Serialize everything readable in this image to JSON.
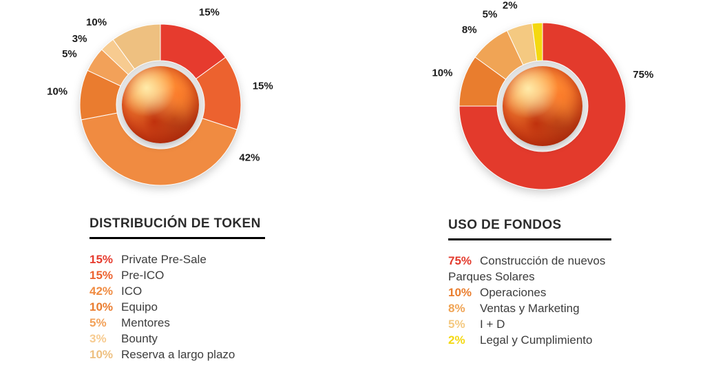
{
  "chart_data": [
    {
      "type": "pie",
      "donut": true,
      "direction": "clockwise",
      "start_angle_deg": 0,
      "title": "DISTRIBUCIÓN DE TOKEN",
      "segments": [
        {
          "label": "Private Pre-Sale",
          "value": 15,
          "pct_label": "15%",
          "color": "#e63b2e",
          "label_angle": 28
        },
        {
          "label": "Pre-ICO",
          "value": 15,
          "pct_label": "15%",
          "color": "#ec622f",
          "label_angle": 80
        },
        {
          "label": "ICO",
          "value": 42,
          "pct_label": "42%",
          "color": "#f08b41",
          "label_angle": 121
        },
        {
          "label": "Equipo",
          "value": 10,
          "pct_label": "10%",
          "color": "#ea7c2f",
          "label_angle": 277
        },
        {
          "label": "Mentores",
          "value": 5,
          "pct_label": "5%",
          "color": "#f2a159",
          "label_angle": 299
        },
        {
          "label": "Bounty",
          "value": 3,
          "pct_label": "3%",
          "color": "#f7cb90",
          "label_angle": 309
        },
        {
          "label": "Reserva a largo plazo",
          "value": 10,
          "pct_label": "10%",
          "color": "#eec080",
          "label_angle": 322
        }
      ]
    },
    {
      "type": "pie",
      "donut": true,
      "direction": "clockwise",
      "start_angle_deg": 0,
      "title": "USO DE FONDOS",
      "segments": [
        {
          "label": "Construcción de nuevos Parques Solares",
          "value": 75,
          "pct_label": "75%",
          "color": "#e33a2c",
          "label_angle": 73
        },
        {
          "label": "Operaciones",
          "value": 10,
          "pct_label": "10%",
          "color": "#e97d2e",
          "label_angle": 288
        },
        {
          "label": "Ventas y Marketing",
          "value": 8,
          "pct_label": "8%",
          "color": "#f0a455",
          "label_angle": 316
        },
        {
          "label": "I + D",
          "value": 5,
          "pct_label": "5%",
          "color": "#f4c981",
          "label_angle": 330
        },
        {
          "label": "Legal y Cumplimiento",
          "value": 2,
          "pct_label": "2%",
          "color": "#f4d811",
          "label_angle": 342
        }
      ]
    }
  ]
}
